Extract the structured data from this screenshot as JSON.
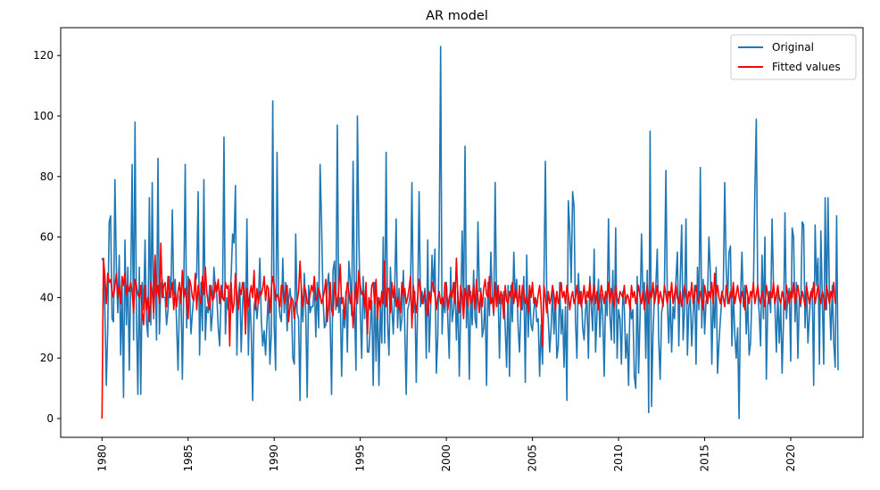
{
  "chart_data": {
    "type": "line",
    "title": "AR model",
    "xlabel": "",
    "ylabel": "",
    "xlim": [
      1977.6,
      2024.2
    ],
    "ylim": [
      -6.2,
      129.2
    ],
    "x_ticks": [
      1980,
      1985,
      1990,
      1995,
      2000,
      2005,
      2010,
      2015,
      2020
    ],
    "y_ticks": [
      0,
      20,
      40,
      60,
      80,
      100,
      120
    ],
    "grid": false,
    "legend_position": "top-right",
    "x_start": 1980.0,
    "x_step": 0.0833333,
    "series": [
      {
        "name": "Original",
        "color": "#1f77b4",
        "values": [
          53,
          52,
          36,
          11,
          30,
          65,
          67,
          33,
          32,
          79,
          50,
          35,
          54,
          21,
          44,
          7,
          59,
          31,
          50,
          16,
          45,
          84,
          26,
          98,
          34,
          8,
          50,
          8,
          45,
          36,
          59,
          32,
          27,
          73,
          31,
          78,
          33,
          52,
          26,
          86,
          28,
          44,
          46,
          40,
          40,
          31,
          36,
          47,
          40,
          69,
          41,
          46,
          31,
          16,
          40,
          43,
          13,
          44,
          84,
          30,
          47,
          43,
          28,
          35,
          41,
          45,
          47,
          75,
          21,
          45,
          29,
          79,
          26,
          37,
          35,
          44,
          29,
          35,
          50,
          43,
          41,
          30,
          24,
          41,
          40,
          93,
          28,
          40,
          36,
          40,
          47,
          61,
          58,
          77,
          21,
          41,
          45,
          22,
          38,
          45,
          30,
          66,
          21,
          41,
          29,
          6,
          37,
          40,
          33,
          39,
          53,
          33,
          24,
          29,
          21,
          32,
          42,
          18,
          28,
          105,
          31,
          16,
          88,
          40,
          34,
          32,
          53,
          35,
          45,
          29,
          39,
          43,
          38,
          20,
          18,
          61,
          35,
          33,
          6,
          43,
          32,
          48,
          35,
          7,
          44,
          35,
          37,
          37,
          45,
          27,
          45,
          30,
          84,
          65,
          40,
          30,
          31,
          44,
          48,
          32,
          8,
          49,
          52,
          36,
          97,
          35,
          40,
          14,
          36,
          30,
          42,
          22,
          52,
          46,
          34,
          85,
          37,
          16,
          100,
          60,
          35,
          20,
          47,
          33,
          44,
          22,
          22,
          31,
          39,
          11,
          45,
          19,
          40,
          11,
          38,
          25,
          60,
          25,
          88,
          32,
          21,
          50,
          37,
          28,
          43,
          66,
          30,
          43,
          29,
          33,
          49,
          30,
          8,
          36,
          38,
          42,
          78,
          35,
          42,
          12,
          38,
          75,
          37,
          42,
          38,
          43,
          20,
          59,
          22,
          36,
          54,
          42,
          56,
          15,
          27,
          58,
          123,
          28,
          40,
          35,
          45,
          33,
          20,
          50,
          32,
          36,
          45,
          26,
          42,
          14,
          35,
          62,
          36,
          90,
          30,
          44,
          13,
          42,
          31,
          49,
          33,
          30,
          65,
          42,
          43,
          27,
          30,
          40,
          11,
          45,
          34,
          55,
          40,
          34,
          78,
          38,
          43,
          20,
          40,
          38,
          42,
          30,
          17,
          44,
          14,
          44,
          32,
          55,
          40,
          46,
          30,
          22,
          39,
          36,
          47,
          12,
          54,
          27,
          42,
          31,
          29,
          36,
          40,
          32,
          33,
          14,
          31,
          18,
          45,
          85,
          39,
          33,
          22,
          30,
          43,
          28,
          40,
          20,
          24,
          45,
          28,
          36,
          17,
          37,
          6,
          72,
          62,
          45,
          75,
          70,
          32,
          20,
          48,
          38,
          42,
          30,
          26,
          36,
          39,
          20,
          47,
          37,
          29,
          56,
          22,
          35,
          46,
          27,
          41,
          34,
          14,
          42,
          34,
          66,
          34,
          26,
          49,
          25,
          63,
          20,
          36,
          33,
          18,
          42,
          37,
          20,
          28,
          11,
          39,
          33,
          36,
          14,
          10,
          47,
          15,
          34,
          61,
          40,
          45,
          20,
          49,
          2,
          95,
          4,
          28,
          40,
          44,
          56,
          26,
          13,
          35,
          38,
          44,
          82,
          39,
          25,
          42,
          22,
          37,
          33,
          46,
          55,
          24,
          46,
          64,
          26,
          36,
          66,
          21,
          37,
          40,
          24,
          35,
          44,
          18,
          50,
          36,
          83,
          30,
          46,
          28,
          39,
          40,
          60,
          48,
          18,
          40,
          30,
          50,
          15,
          25,
          33,
          40,
          43,
          78,
          50,
          38,
          55,
          57,
          24,
          42,
          28,
          20,
          30,
          0,
          40,
          55,
          37,
          44,
          28,
          40,
          21,
          25,
          42,
          43,
          75,
          99,
          42,
          35,
          24,
          54,
          33,
          60,
          13,
          38,
          42,
          35,
          66,
          44,
          37,
          22,
          42,
          25,
          38,
          15,
          33,
          68,
          33,
          40,
          43,
          19,
          63,
          60,
          32,
          45,
          20,
          40,
          37,
          65,
          64,
          30,
          45,
          25,
          34,
          41,
          43,
          11,
          64,
          44,
          53,
          18,
          62,
          40,
          18,
          73,
          36,
          73,
          40,
          26,
          44,
          25,
          17,
          67,
          16
        ]
      },
      {
        "name": "Fitted values",
        "color": "#ff0000",
        "values": [
          0,
          53,
          47,
          38,
          48,
          45,
          46,
          42,
          40,
          44,
          48,
          40,
          44,
          38,
          47,
          44,
          48,
          41,
          44,
          42,
          45,
          42,
          35,
          46,
          44,
          41,
          40,
          44,
          35,
          31,
          44,
          36,
          40,
          32,
          45,
          42,
          35,
          54,
          41,
          44,
          38,
          58,
          40,
          44,
          45,
          37,
          47,
          40,
          42,
          45,
          36,
          42,
          37,
          42,
          45,
          38,
          49,
          40,
          43,
          38,
          33,
          46,
          44,
          40,
          39,
          48,
          36,
          44,
          40,
          38,
          47,
          41,
          50,
          42,
          38,
          36,
          44,
          39,
          40,
          45,
          42,
          46,
          38,
          44,
          40,
          39,
          45,
          43,
          44,
          24,
          45,
          35,
          38,
          48,
          40,
          36,
          43,
          41,
          45,
          42,
          28,
          43,
          37,
          41,
          44,
          40,
          49,
          36,
          43,
          38,
          42,
          41,
          43,
          47,
          39,
          44,
          43,
          35,
          43,
          47,
          44,
          39,
          41,
          40,
          37,
          44,
          44,
          38,
          41,
          44,
          32,
          37,
          40,
          39,
          33,
          38,
          39,
          42,
          52,
          42,
          37,
          44,
          42,
          38,
          38,
          41,
          44,
          42,
          47,
          39,
          40,
          43,
          41,
          38,
          40,
          42,
          46,
          32,
          38,
          45,
          36,
          34,
          45,
          41,
          37,
          43,
          51,
          38,
          40,
          33,
          40,
          45,
          42,
          38,
          42,
          30,
          38,
          45,
          38,
          49,
          44,
          41,
          42,
          37,
          45,
          28,
          40,
          36,
          44,
          45,
          38,
          46,
          33,
          40,
          37,
          42,
          38,
          52,
          37,
          43,
          43,
          35,
          45,
          40,
          44,
          37,
          40,
          37,
          35,
          45,
          41,
          43,
          38,
          40,
          43,
          47,
          30,
          44,
          39,
          35,
          40,
          46,
          43,
          38,
          40,
          42,
          36,
          34,
          42,
          38,
          45,
          44,
          41,
          36,
          40,
          42,
          38,
          40,
          37,
          45,
          44,
          36,
          40,
          42,
          40,
          45,
          38,
          53,
          40,
          35,
          44,
          40,
          33,
          43,
          41,
          37,
          44,
          38,
          39,
          44,
          36,
          46,
          40,
          35,
          42,
          37,
          43,
          46,
          41,
          40,
          47,
          38,
          40,
          35,
          45,
          37,
          44,
          38,
          42,
          40,
          33,
          44,
          39,
          38,
          42,
          40,
          45,
          38,
          43,
          40,
          37,
          44,
          36,
          44,
          42,
          38,
          40,
          35,
          44,
          40,
          45,
          38,
          40,
          37,
          41,
          44,
          38,
          24,
          44,
          40,
          35,
          42,
          38,
          40,
          44,
          41,
          36,
          42,
          38,
          40,
          45,
          40,
          42,
          38,
          44,
          41,
          36,
          40,
          42,
          38,
          40,
          44,
          38,
          42,
          37,
          40,
          44,
          38,
          42,
          40,
          45,
          38,
          41,
          44,
          38,
          42,
          36,
          40,
          44,
          41,
          38,
          42,
          40,
          45,
          38,
          43,
          40,
          37,
          44,
          40,
          38,
          42,
          41,
          40,
          44,
          38,
          41,
          40,
          36,
          44,
          40,
          42,
          38,
          41,
          44,
          40,
          38,
          42,
          36,
          40,
          44,
          38,
          42,
          40,
          45,
          38,
          41,
          44,
          38,
          42,
          40,
          37,
          44,
          41,
          38,
          42,
          40,
          45,
          38,
          41,
          44,
          40,
          38,
          42,
          37,
          40,
          44,
          41,
          38,
          42,
          40,
          45,
          38,
          41,
          44,
          40,
          38,
          42,
          40,
          36,
          44,
          41,
          38,
          42,
          40,
          45,
          38,
          48,
          41,
          44,
          40,
          38,
          42,
          40,
          37,
          44,
          41,
          38,
          42,
          40,
          45,
          38,
          41,
          44,
          40,
          38,
          42,
          40,
          36,
          44,
          41,
          38,
          42,
          40,
          45,
          38,
          41,
          44,
          40,
          38,
          42,
          40,
          37,
          44,
          41,
          38,
          42,
          40,
          45,
          38,
          41,
          44,
          40,
          38,
          42,
          40,
          36,
          44,
          41,
          38,
          42,
          40,
          45,
          38,
          41,
          44,
          40,
          38,
          42,
          40,
          37,
          44,
          41,
          38,
          42,
          40,
          45,
          38,
          41,
          44,
          40,
          38,
          42,
          40,
          36,
          44,
          41,
          38,
          42,
          40,
          45,
          38
        ]
      }
    ]
  }
}
